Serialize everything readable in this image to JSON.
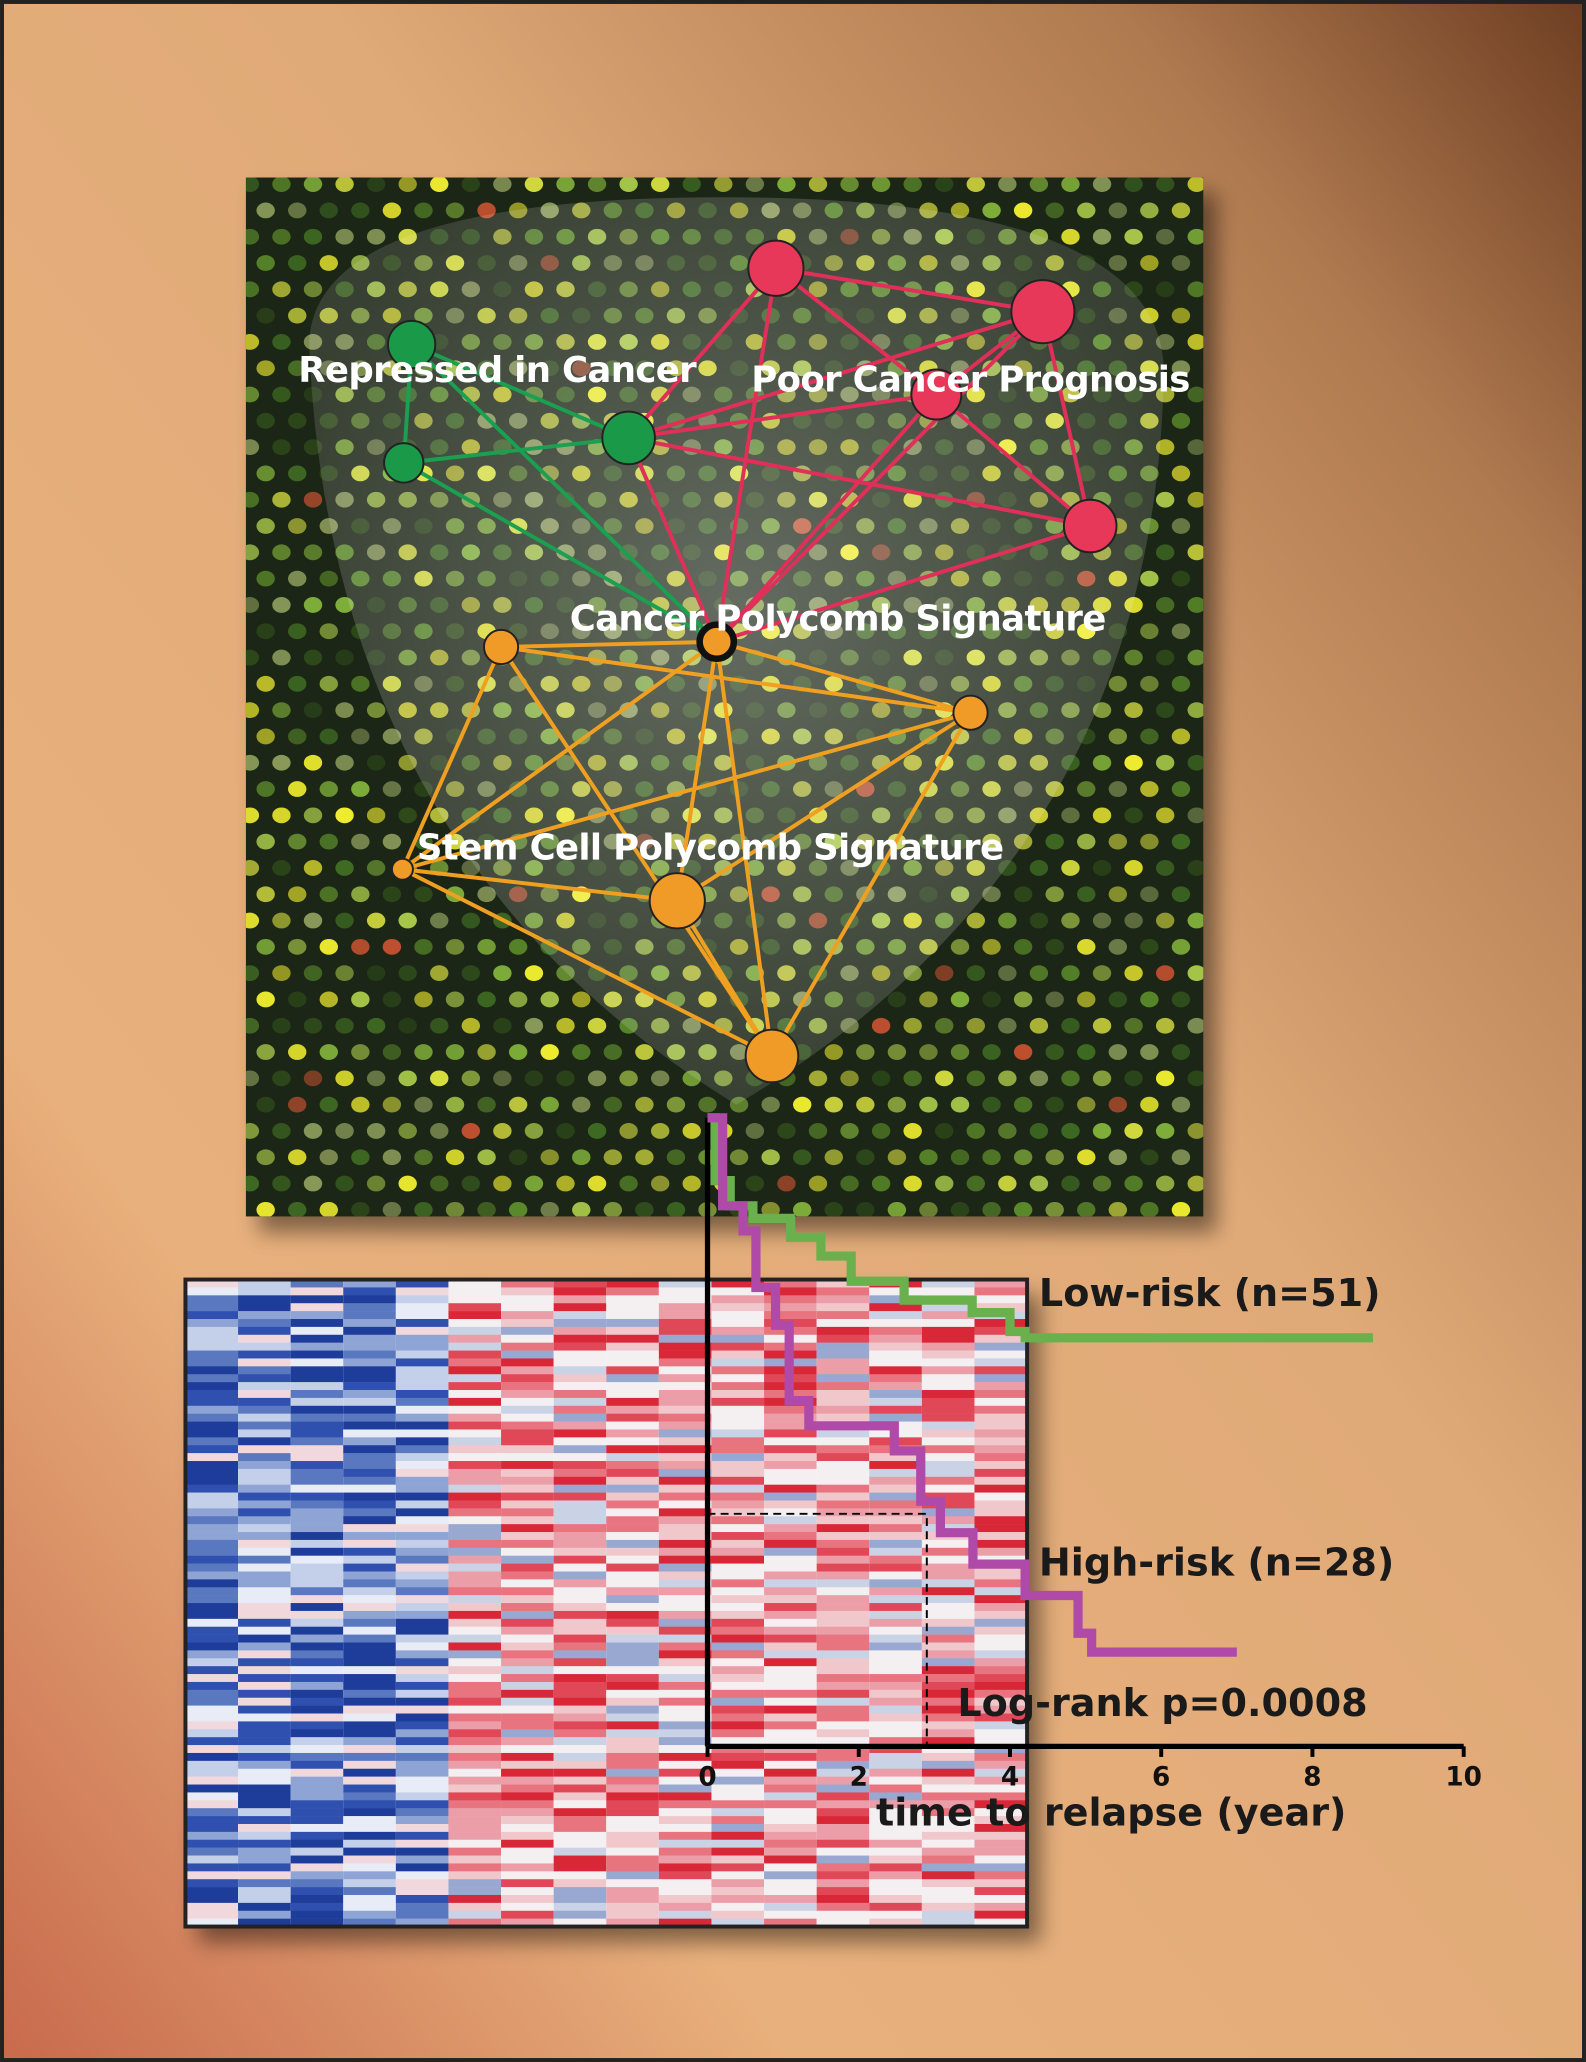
{
  "network": {
    "labels": [
      "Repressed in Cancer",
      "Poor Cancer Prognosis",
      "Cancer Polycomb Signature",
      "Stem Cell Polycomb Signature"
    ]
  },
  "chart_data": {
    "type": "line",
    "step": true,
    "x_label": "time to relapse (year)",
    "xlim": [
      0,
      10
    ],
    "ylim": [
      0,
      1
    ],
    "xticks": [
      0,
      2,
      4,
      6,
      8,
      10
    ],
    "series": [
      {
        "name": "Low-risk (n=51)",
        "color": "#6ab04c",
        "x": [
          0,
          0.1,
          0.3,
          0.6,
          1.1,
          1.5,
          1.9,
          2.6,
          3.5,
          4.0,
          4.2,
          8.8
        ],
        "values": [
          1,
          0.9,
          0.86,
          0.84,
          0.81,
          0.78,
          0.74,
          0.71,
          0.69,
          0.66,
          0.65,
          0.65
        ]
      },
      {
        "name": "High-risk (n=28)",
        "color": "#b04aa8",
        "x": [
          0,
          0.2,
          0.47,
          0.64,
          0.9,
          1.08,
          1.34,
          2.47,
          2.82,
          3.08,
          3.51,
          4.2,
          4.9,
          5.08,
          7.0
        ],
        "values": [
          1,
          0.86,
          0.82,
          0.73,
          0.67,
          0.55,
          0.51,
          0.47,
          0.39,
          0.34,
          0.29,
          0.24,
          0.18,
          0.15,
          0.15
        ]
      }
    ],
    "reference": {
      "x": 2.9,
      "y": 0.37
    },
    "annotations": [
      "Log-rank p=0.0008"
    ]
  }
}
